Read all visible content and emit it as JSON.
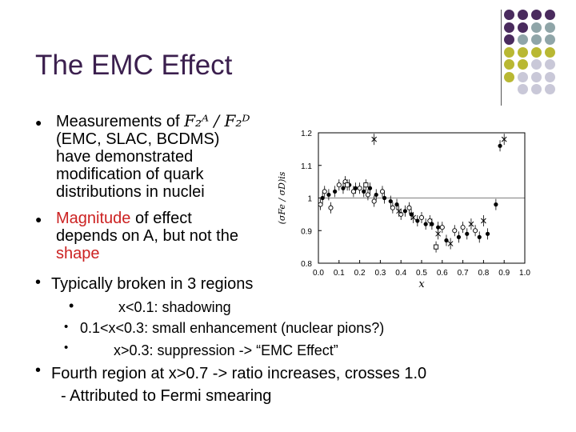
{
  "slide": {
    "title": "The EMC Effect",
    "bullet1": {
      "line1_prefix": "Measurements of",
      "formula": "F₂ᴬ / F₂ᴰ",
      "line2": "(EMC, SLAC, BCDMS)",
      "line3": "have demonstrated",
      "line4": "modification of quark",
      "line5": "distributions in nuclei"
    },
    "bullet2": {
      "red_word": "Magnitude",
      "line1_rest": " of effect",
      "line2": "depends on A, but not the",
      "line3_red": "shape"
    },
    "bullet3": "Typically broken in 3 regions",
    "regions": [
      "x<0.1: shadowing",
      "0.1<x<0.3: small enhancement (nuclear pions?)",
      "x>0.3: suppression -> “EMC Effect”"
    ],
    "bullet4": {
      "line1": "Fourth region at x>0.7 -> ratio increases, crosses 1.0",
      "line2": "- Attributed to Fermi smearing"
    },
    "colors": {
      "title": "#3b1f4e",
      "highlight": "#cc2222",
      "accent_purple": "#4a2b5e",
      "accent_teal": "#8fa5a8",
      "accent_yellow": "#b9b833",
      "accent_lavender": "#c9c8d8"
    }
  },
  "chart_data": {
    "type": "scatter",
    "title": "",
    "xlabel": "x",
    "ylabel": "(σFe / σD)is",
    "xlim": [
      0.0,
      1.0
    ],
    "ylim": [
      0.8,
      1.2
    ],
    "xticks": [
      "0.0",
      "0.1",
      "0.2",
      "0.3",
      "0.4",
      "0.5",
      "0.6",
      "0.7",
      "0.8",
      "0.9",
      "1.0"
    ],
    "yticks": [
      "0.8",
      "0.9",
      "1",
      "1.1",
      "1.2"
    ],
    "series": [
      {
        "marker": "filled-circle",
        "points": [
          [
            0.02,
            1.0
          ],
          [
            0.05,
            1.01
          ],
          [
            0.08,
            1.02
          ],
          [
            0.12,
            1.03
          ],
          [
            0.15,
            1.04
          ],
          [
            0.18,
            1.03
          ],
          [
            0.22,
            1.02
          ],
          [
            0.25,
            1.03
          ],
          [
            0.28,
            1.01
          ],
          [
            0.32,
            1.0
          ],
          [
            0.35,
            0.99
          ],
          [
            0.38,
            0.98
          ],
          [
            0.42,
            0.96
          ],
          [
            0.45,
            0.95
          ],
          [
            0.48,
            0.93
          ],
          [
            0.52,
            0.92
          ],
          [
            0.55,
            0.92
          ],
          [
            0.58,
            0.91
          ],
          [
            0.62,
            0.87
          ],
          [
            0.68,
            0.88
          ],
          [
            0.72,
            0.89
          ],
          [
            0.78,
            0.88
          ],
          [
            0.82,
            0.89
          ],
          [
            0.86,
            0.98
          ],
          [
            0.88,
            1.16
          ]
        ]
      },
      {
        "marker": "open-circle",
        "points": [
          [
            0.01,
            0.98
          ],
          [
            0.03,
            1.02
          ],
          [
            0.06,
            0.97
          ],
          [
            0.1,
            1.04
          ],
          [
            0.13,
            1.05
          ],
          [
            0.17,
            1.02
          ],
          [
            0.2,
            1.03
          ],
          [
            0.24,
            1.01
          ],
          [
            0.27,
            0.99
          ],
          [
            0.31,
            1.02
          ],
          [
            0.36,
            0.97
          ],
          [
            0.4,
            0.95
          ],
          [
            0.44,
            0.97
          ],
          [
            0.5,
            0.94
          ],
          [
            0.54,
            0.93
          ],
          [
            0.6,
            0.91
          ],
          [
            0.66,
            0.9
          ],
          [
            0.7,
            0.91
          ],
          [
            0.76,
            0.9
          ]
        ]
      },
      {
        "marker": "cross",
        "points": [
          [
            0.27,
            1.18
          ],
          [
            0.39,
            0.96
          ],
          [
            0.46,
            0.94
          ],
          [
            0.58,
            0.89
          ],
          [
            0.64,
            0.86
          ],
          [
            0.74,
            0.92
          ],
          [
            0.8,
            0.93
          ],
          [
            0.9,
            1.18
          ]
        ]
      },
      {
        "marker": "open-square",
        "points": [
          [
            0.14,
            1.04
          ],
          [
            0.23,
            1.04
          ],
          [
            0.57,
            0.85
          ]
        ]
      }
    ]
  }
}
